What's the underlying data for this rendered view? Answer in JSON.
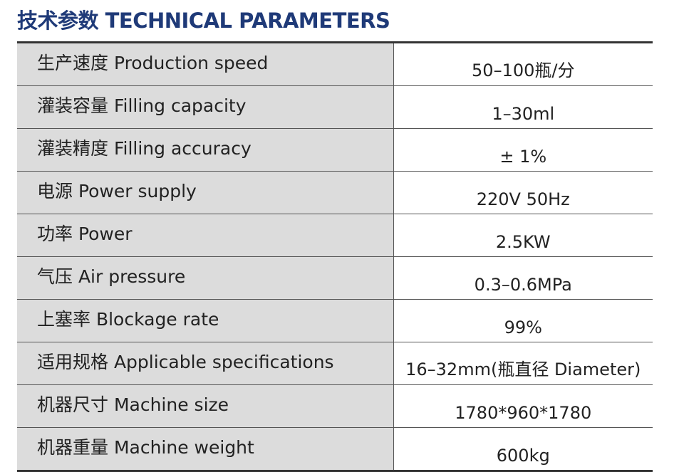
{
  "header": {
    "title": "技术参数 TECHNICAL PARAMETERS"
  },
  "table": {
    "rows": [
      [
        "生产速度 Production speed",
        "50–100瓶/分"
      ],
      [
        "灌装容量 Filling capacity",
        "1–30ml"
      ],
      [
        "灌装精度 Filling accuracy",
        "± 1%"
      ],
      [
        "电源 Power supply",
        "220V 50Hz"
      ],
      [
        "功率 Power",
        "2.5KW"
      ],
      [
        "气压 Air pressure",
        "0.3–0.6MPa"
      ],
      [
        "上塞率 Blockage rate",
        "99%"
      ],
      [
        "适用规格 Applicable specifications",
        "16–32mm(瓶直径 Diameter)"
      ],
      [
        "机器尺寸 Machine size",
        "1780*960*1780"
      ],
      [
        "机器重量 Machine weight",
        "600kg"
      ]
    ]
  }
}
